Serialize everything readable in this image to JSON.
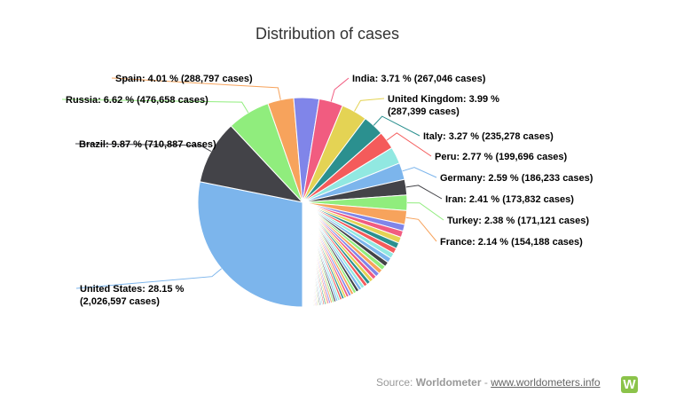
{
  "chart_data": {
    "type": "pie",
    "title": "Distribution of cases",
    "label_suffix": "cases",
    "slices": [
      {
        "name": "United States",
        "pct": "28.15 %",
        "cases": "2,026,597",
        "value": 28.15,
        "color": "#7cb5ec"
      },
      {
        "name": "Brazil",
        "pct": "9.87 %",
        "cases": "710,887",
        "value": 9.87,
        "color": "#434348"
      },
      {
        "name": "Russia",
        "pct": "6.62 %",
        "cases": "476,658",
        "value": 6.62,
        "color": "#90ed7d"
      },
      {
        "name": "Spain",
        "pct": "4.01 %",
        "cases": "288,797",
        "value": 4.01,
        "color": "#f7a35c"
      },
      {
        "name": "",
        "pct": "",
        "cases": "",
        "value": 3.9,
        "color": "#8085e9"
      },
      {
        "name": "India",
        "pct": "3.71 %",
        "cases": "267,046",
        "value": 3.71,
        "color": "#f15c80"
      },
      {
        "name": "United Kingdom",
        "pct": "3.99 %",
        "cases": "287,399",
        "value": 3.99,
        "color": "#e4d354"
      },
      {
        "name": "Italy",
        "pct": "3.27 %",
        "cases": "235,278",
        "value": 3.27,
        "color": "#2b908f"
      },
      {
        "name": "Peru",
        "pct": "2.77 %",
        "cases": "199,696",
        "value": 2.77,
        "color": "#f45b5b"
      },
      {
        "name": "",
        "pct": "",
        "cases": "",
        "value": 2.6,
        "color": "#91e8e1"
      },
      {
        "name": "Germany",
        "pct": "2.59 %",
        "cases": "186,233",
        "value": 2.59,
        "color": "#7cb5ec"
      },
      {
        "name": "Iran",
        "pct": "2.41 %",
        "cases": "173,832",
        "value": 2.41,
        "color": "#434348"
      },
      {
        "name": "Turkey",
        "pct": "2.38 %",
        "cases": "171,121",
        "value": 2.38,
        "color": "#90ed7d"
      },
      {
        "name": "France",
        "pct": "2.14 %",
        "cases": "154,188",
        "value": 2.14,
        "color": "#f7a35c"
      }
    ],
    "small_slice_colors": [
      "#8085e9",
      "#f15c80",
      "#e4d354",
      "#2b908f",
      "#f45b5b",
      "#91e8e1",
      "#7cb5ec",
      "#434348",
      "#90ed7d",
      "#f7a35c"
    ]
  },
  "source": {
    "prefix": "Source:",
    "name": "Worldometer",
    "separator": "-",
    "url_text": "www.worldometers.info",
    "logo_letter": "W"
  }
}
